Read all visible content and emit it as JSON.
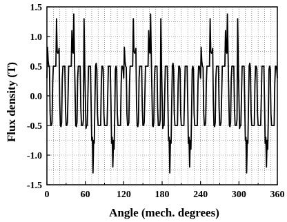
{
  "chart_data": {
    "type": "line",
    "xlabel": "Angle (mech. degrees)",
    "ylabel": "Flux density (T)",
    "xlim": [
      0,
      360
    ],
    "ylim": [
      -1.5,
      1.5
    ],
    "xticks": [
      0,
      60,
      120,
      180,
      240,
      300,
      360
    ],
    "yticks": [
      -1.5,
      -1.0,
      -0.5,
      0.0,
      0.5,
      1.0,
      1.5
    ],
    "ytick_labels": [
      "-1.5",
      "-1.0",
      "-0.5",
      "0.0",
      "0.5",
      "1.0",
      "1.5"
    ],
    "grid": true,
    "series": [
      {
        "x": [
          0,
          1,
          2,
          3,
          4,
          5,
          6,
          7,
          8,
          9,
          10,
          11,
          12,
          13,
          14,
          15,
          16,
          17,
          18,
          19,
          20,
          21,
          22,
          23,
          24,
          25,
          26,
          27,
          28,
          29,
          30,
          31,
          32,
          33,
          34,
          35,
          36,
          37,
          38,
          39,
          40,
          41,
          42,
          43,
          44,
          45,
          46,
          47,
          48,
          49,
          50,
          51,
          52,
          53,
          54,
          55,
          56,
          57,
          58,
          59,
          60,
          61,
          62,
          63,
          64,
          65,
          66,
          67,
          68,
          69,
          70,
          71,
          72,
          73,
          74,
          75,
          76,
          77,
          78,
          79,
          80,
          81,
          82,
          83,
          84,
          85,
          86,
          87,
          88,
          89,
          90,
          91,
          92,
          93,
          94,
          95,
          96,
          97,
          98,
          99,
          100,
          101,
          102,
          103,
          104,
          105,
          106,
          107,
          108,
          109,
          110,
          111,
          112,
          113,
          114,
          115,
          116,
          117,
          118,
          119,
          120
        ],
        "y": [
          0.3,
          0.82,
          0.58,
          0.5,
          0.48,
          -0.3,
          -0.5,
          -0.5,
          -0.45,
          0.2,
          0.5,
          0.5,
          0.5,
          0.5,
          0.5,
          1.3,
          0.75,
          0.72,
          0.73,
          0.8,
          -0.1,
          -0.5,
          -0.52,
          -0.45,
          0.3,
          0.5,
          0.5,
          0.5,
          0.5,
          -0.2,
          -0.5,
          -0.5,
          -0.45,
          0.0,
          0.5,
          0.5,
          0.5,
          0.5,
          0.5,
          1.1,
          0.75,
          0.72,
          1.38,
          0.7,
          0.1,
          -0.5,
          -0.52,
          -0.45,
          0.3,
          0.5,
          0.5,
          0.5,
          0.5,
          -0.2,
          -0.5,
          -0.5,
          -0.5,
          -0.4,
          1.3,
          0.55,
          0.0,
          -0.55,
          -0.5,
          -0.5,
          0.0,
          0.5,
          0.5,
          0.5,
          0.5,
          -0.1,
          -0.75,
          -0.7,
          -1.3,
          -0.75,
          -0.8,
          -0.1,
          0.5,
          0.55,
          0.45,
          -0.3,
          -0.5,
          -0.5,
          -0.5,
          -0.5,
          -0.5,
          0.2,
          0.5,
          0.5,
          0.45,
          -0.3,
          -0.5,
          -0.5,
          -0.5,
          -0.5,
          -0.5,
          0.0,
          0.5,
          0.5,
          0.5,
          0.5,
          -0.1,
          -0.8,
          -0.7,
          -1.2,
          -0.75,
          -0.9,
          -0.3,
          0.45,
          0.5,
          0.45,
          -0.3,
          -0.5,
          -0.5,
          -0.5,
          -0.5,
          -0.5,
          0.2,
          0.5,
          0.5,
          0.45,
          0.3
        ]
      }
    ]
  }
}
